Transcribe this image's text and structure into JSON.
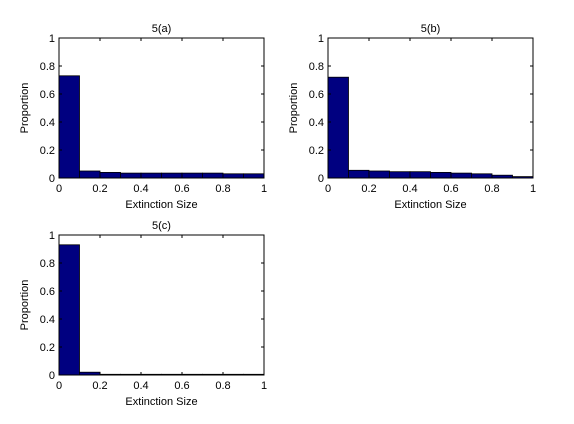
{
  "chart_data": [
    {
      "type": "bar",
      "title": "5(a)",
      "xlabel": "Extinction Size",
      "ylabel": "Proportion",
      "xlim": [
        0,
        1
      ],
      "ylim": [
        0,
        1
      ],
      "xticks": [
        "0",
        "0.2",
        "0.4",
        "0.6",
        "0.8",
        "1"
      ],
      "yticks": [
        "0",
        "0.2",
        "0.4",
        "0.6",
        "0.8",
        "1"
      ],
      "bin_edges": [
        0,
        0.1,
        0.2,
        0.3,
        0.4,
        0.5,
        0.6,
        0.7,
        0.8,
        0.9,
        1.0
      ],
      "values": [
        0.73,
        0.05,
        0.04,
        0.035,
        0.035,
        0.035,
        0.035,
        0.035,
        0.03,
        0.03
      ],
      "bar_color": "#000080",
      "grid": false
    },
    {
      "type": "bar",
      "title": "5(b)",
      "xlabel": "Extinction Size",
      "ylabel": "Proportion",
      "xlim": [
        0,
        1
      ],
      "ylim": [
        0,
        1
      ],
      "xticks": [
        "0",
        "0.2",
        "0.4",
        "0.6",
        "0.8",
        "1"
      ],
      "yticks": [
        "0",
        "0.2",
        "0.4",
        "0.6",
        "0.8",
        "1"
      ],
      "bin_edges": [
        0,
        0.1,
        0.2,
        0.3,
        0.4,
        0.5,
        0.6,
        0.7,
        0.8,
        0.9,
        1.0
      ],
      "values": [
        0.72,
        0.055,
        0.05,
        0.045,
        0.045,
        0.04,
        0.035,
        0.03,
        0.02,
        0.01
      ],
      "bar_color": "#000080",
      "grid": false
    },
    {
      "type": "bar",
      "title": "5(c)",
      "xlabel": "Extinction Size",
      "ylabel": "Proportion",
      "xlim": [
        0,
        1
      ],
      "ylim": [
        0,
        1
      ],
      "xticks": [
        "0",
        "0.2",
        "0.4",
        "0.6",
        "0.8",
        "1"
      ],
      "yticks": [
        "0",
        "0.2",
        "0.4",
        "0.6",
        "0.8",
        "1"
      ],
      "bin_edges": [
        0,
        0.1,
        0.2,
        0.3,
        0.4,
        0.5,
        0.6,
        0.7,
        0.8,
        0.9,
        1.0
      ],
      "values": [
        0.93,
        0.02,
        0.005,
        0.005,
        0.005,
        0.005,
        0.005,
        0.005,
        0.005,
        0.005
      ],
      "bar_color": "#000080",
      "grid": false
    }
  ]
}
